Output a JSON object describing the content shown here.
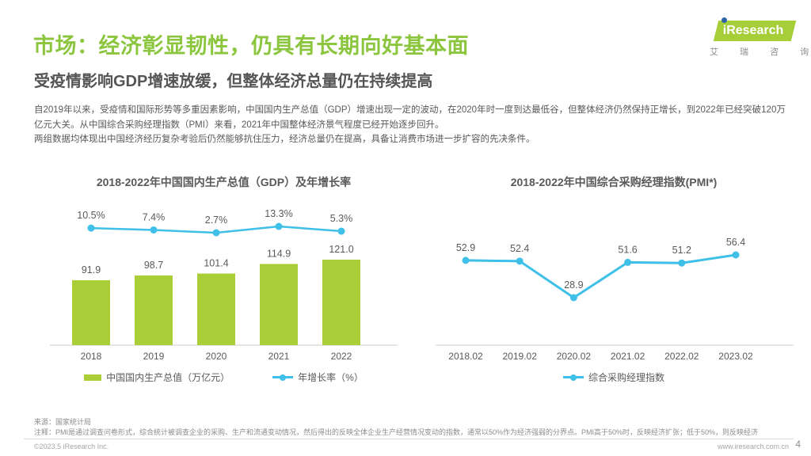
{
  "page": {
    "title": "市场：经济彰显韧性，仍具有长期向好基本面",
    "subtitle": "受疫情影响GDP增速放缓，但整体经济总量仍在持续提高",
    "paragraphs": [
      "自2019年以来，受疫情和国际形势等多重因素影响，中国国内生产总值（GDP）增速出现一定的波动，在2020年时一度到达最低谷，但整体经济仍然保持正增长，到2022年已经突破120万亿元大关。从中国综合采购经理指数（PMI）来看，2021年中国整体经济景气程度已经开始逐步回升。",
      "两组数据均体现出中国经济经历复杂考验后仍然能够抗住压力，经济总量仍在提高，具备让消费市场进一步扩容的先决条件。"
    ]
  },
  "logo": {
    "brand": "iResearch",
    "brand_cn": "艾 瑞 咨 询"
  },
  "colors": {
    "green": "#8CC63F",
    "bar_green": "#A9CE38",
    "cyan": "#3EC0E8",
    "logo_green": "#A5CE39",
    "logo_blue": "#2F64A8",
    "text_dark": "#595959"
  },
  "chart_data": [
    {
      "type": "bar",
      "title": "2018-2022年中国国内生产总值（GDP）及年增长率",
      "categories": [
        "2018",
        "2019",
        "2020",
        "2021",
        "2022"
      ],
      "series": [
        {
          "name": "中国国内生产总值（万亿元）",
          "type": "bar",
          "color": "#A9CE38",
          "values": [
            91.9,
            98.7,
            101.4,
            114.9,
            121.0
          ],
          "labels": [
            "91.9",
            "98.7",
            "101.4",
            "114.9",
            "121.0"
          ]
        },
        {
          "name": "年增长率（%）",
          "type": "line",
          "color": "#3EC0E8",
          "values": [
            10.5,
            7.4,
            2.7,
            13.3,
            5.3
          ],
          "labels": [
            "10.5%",
            "7.4%",
            "2.7%",
            "13.3%",
            "5.3%"
          ]
        }
      ],
      "ylim": [
        0,
        130
      ],
      "grid": false,
      "legend_position": "bottom"
    },
    {
      "type": "line",
      "title": "2018-2022年中国综合采购经理指数(PMI*)",
      "categories": [
        "2018.02",
        "2019.02",
        "2020.02",
        "2021.02",
        "2022.02",
        "2023.02"
      ],
      "series": [
        {
          "name": "综合采购经理指数",
          "type": "line",
          "color": "#3EC0E8",
          "values": [
            52.9,
            52.4,
            28.9,
            51.6,
            51.2,
            56.4
          ],
          "labels": [
            "52.9",
            "52.4",
            "28.9",
            "51.6",
            "51.2",
            "56.4"
          ]
        }
      ],
      "grid": false,
      "legend_position": "bottom"
    }
  ],
  "footer": {
    "source": "来源：国家统计局",
    "note": "注释：PMI是通过调查问卷形式，综合统计被调查企业的采购、生产和流通变动情况，然后得出的反映全体企业生产经营情况变动的指数，通常以50%作为经济强弱的分界点。PMI高于50%时，反映经济扩张；低于50%，则反映经济",
    "copyright": "©2023.5 iResearch Inc.",
    "website": "www.iresearch.com.cn",
    "page_number": "4"
  }
}
